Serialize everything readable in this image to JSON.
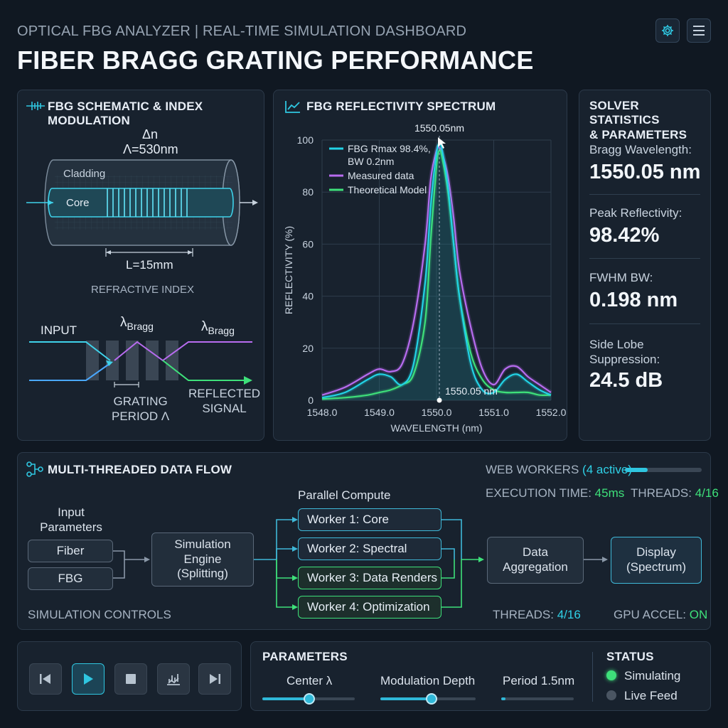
{
  "header": {
    "subtitle": "OPTICAL FBG ANALYZER | REAL-TIME SIMULATION DASHBOARD",
    "title": "FIBER BRAGG GRATING PERFORMANCE",
    "settings_icon": "gear-icon",
    "menu_icon": "hamburger-icon"
  },
  "schematic": {
    "title": "FBG SCHEMATIC & INDEX MODULATION",
    "delta_n": "Δn",
    "period": "Λ=530nm",
    "cladding": "Cladding",
    "core": "Core",
    "length": "L=15mm",
    "refractive_index": "REFRACTIVE INDEX",
    "input": "INPUT",
    "lambda": "λ",
    "bragg_sub": "Bragg",
    "grating_period_1": "GRATING",
    "grating_period_2": "PERIOD Λ",
    "reflected_1": "REFLECTED",
    "reflected_2": "SIGNAL"
  },
  "chart_data": {
    "type": "line",
    "title": "FBG REFLECTIVITY SPECTRUM",
    "xlabel": "WAVELENGTH (nm)",
    "ylabel": "REFLECTIVITY (%)",
    "xlim": [
      1548.0,
      1552.0
    ],
    "ylim": [
      0,
      100
    ],
    "x_ticks": [
      "1548.0",
      "1549.0",
      "1550.0",
      "1551.0",
      "1552.0"
    ],
    "y_ticks": [
      "0",
      "20",
      "40",
      "60",
      "80",
      "100"
    ],
    "grid": true,
    "legend_position": "top-left",
    "peak_label_top": "1550.05nm",
    "peak_label_bottom": "1550.05 nm",
    "series": [
      {
        "name": "FBG Rmax 98.4%, BW 0.2nm",
        "color": "#22d3e6",
        "x": [
          1548.0,
          1548.4,
          1548.8,
          1549.0,
          1549.2,
          1549.4,
          1549.6,
          1549.8,
          1549.9,
          1550.0,
          1550.05,
          1550.1,
          1550.2,
          1550.3,
          1550.4,
          1550.6,
          1550.8,
          1551.0,
          1551.2,
          1551.4,
          1551.6,
          1551.8,
          1552.0
        ],
        "y": [
          1,
          3,
          8,
          10,
          9,
          6,
          14,
          45,
          75,
          95,
          98.4,
          96,
          82,
          60,
          40,
          14,
          4,
          3,
          8,
          10,
          7,
          4,
          2
        ]
      },
      {
        "name": "Measured data",
        "color": "#b86cf0",
        "x": [
          1548.0,
          1548.4,
          1548.8,
          1549.0,
          1549.2,
          1549.4,
          1549.6,
          1549.8,
          1549.9,
          1550.0,
          1550.05,
          1550.1,
          1550.2,
          1550.3,
          1550.4,
          1550.6,
          1550.8,
          1551.0,
          1551.2,
          1551.4,
          1551.6,
          1551.8,
          1552.0
        ],
        "y": [
          2,
          5,
          10,
          12,
          11,
          14,
          30,
          60,
          85,
          96,
          97,
          95,
          86,
          70,
          50,
          28,
          12,
          6,
          12,
          13,
          9,
          6,
          3
        ]
      },
      {
        "name": "Theoretical Model",
        "color": "#3ee07a",
        "x": [
          1548.0,
          1548.4,
          1548.8,
          1549.0,
          1549.2,
          1549.4,
          1549.6,
          1549.8,
          1549.9,
          1550.0,
          1550.05,
          1550.1,
          1550.2,
          1550.3,
          1550.4,
          1550.6,
          1550.8,
          1551.0,
          1551.2,
          1551.4,
          1551.6,
          1551.8,
          1552.0
        ],
        "y": [
          0.5,
          1,
          2,
          3,
          4,
          6,
          10,
          30,
          62,
          90,
          96,
          93,
          80,
          60,
          40,
          18,
          8,
          4,
          3,
          3,
          3,
          2,
          2
        ]
      }
    ],
    "legend": [
      "FBG Rmax 98.4%,",
      "BW 0.2nm",
      "Measured data",
      "Theoretical Model"
    ]
  },
  "stats": {
    "title_1": "SOLVER STATISTICS",
    "title_2": "& PARAMETERS",
    "bragg_label": "Bragg Wavelength:",
    "bragg_value": "1550.05 nm",
    "peak_label": "Peak Reflectivity:",
    "peak_value": "98.42%",
    "fwhm_label": "FWHM BW:",
    "fwhm_value": "0.198 nm",
    "sls_label_1": "Side Lobe",
    "sls_label_2": "Suppression:",
    "sls_value": "24.5 dB"
  },
  "dataflow": {
    "title": "MULTI-THREADED DATA FLOW",
    "web_workers": "WEB WORKERS",
    "active": "(4 active)",
    "workers_progress": 0.3,
    "exec_label": "EXECUTION TIME:",
    "exec_value": "45ms",
    "threads_label": "THREADS:",
    "threads_value": "4/16",
    "input_params_1": "Input",
    "input_params_2": "Parameters",
    "fiber": "Fiber",
    "fbg": "FBG",
    "engine_1": "Simulation",
    "engine_2": "Engine",
    "engine_3": "(Splitting)",
    "parallel": "Parallel Compute",
    "workers": [
      "Worker 1: Core",
      "Worker 2: Spectral",
      "Worker 3: Data Renders",
      "Worker 4: Optimization"
    ],
    "agg_1": "Data",
    "agg_2": "Aggregation",
    "display_1": "Display",
    "display_2": "(Spectrum)",
    "sim_controls": "SIMULATION CONTROLS",
    "threads_bottom_label": "THREADS:",
    "threads_bottom_value": "4/16",
    "gpu_label": "GPU ACCEL:",
    "gpu_value": "ON"
  },
  "controls": {
    "skip_back_icon": "skip-back-icon",
    "play_icon": "play-icon",
    "stop_icon": "stop-icon",
    "chart_icon": "bar-chart-icon",
    "skip_forward_icon": "skip-forward-icon"
  },
  "parameters": {
    "title": "PARAMETERS",
    "center": "Center λ",
    "center_value": 0.5,
    "modulation": "Modulation Depth",
    "modulation_value": 0.55,
    "period": "Period 1.5nm",
    "period_value": 0.02
  },
  "status": {
    "title": "STATUS",
    "simulating": "Simulating",
    "live_feed": "Live Feed"
  }
}
